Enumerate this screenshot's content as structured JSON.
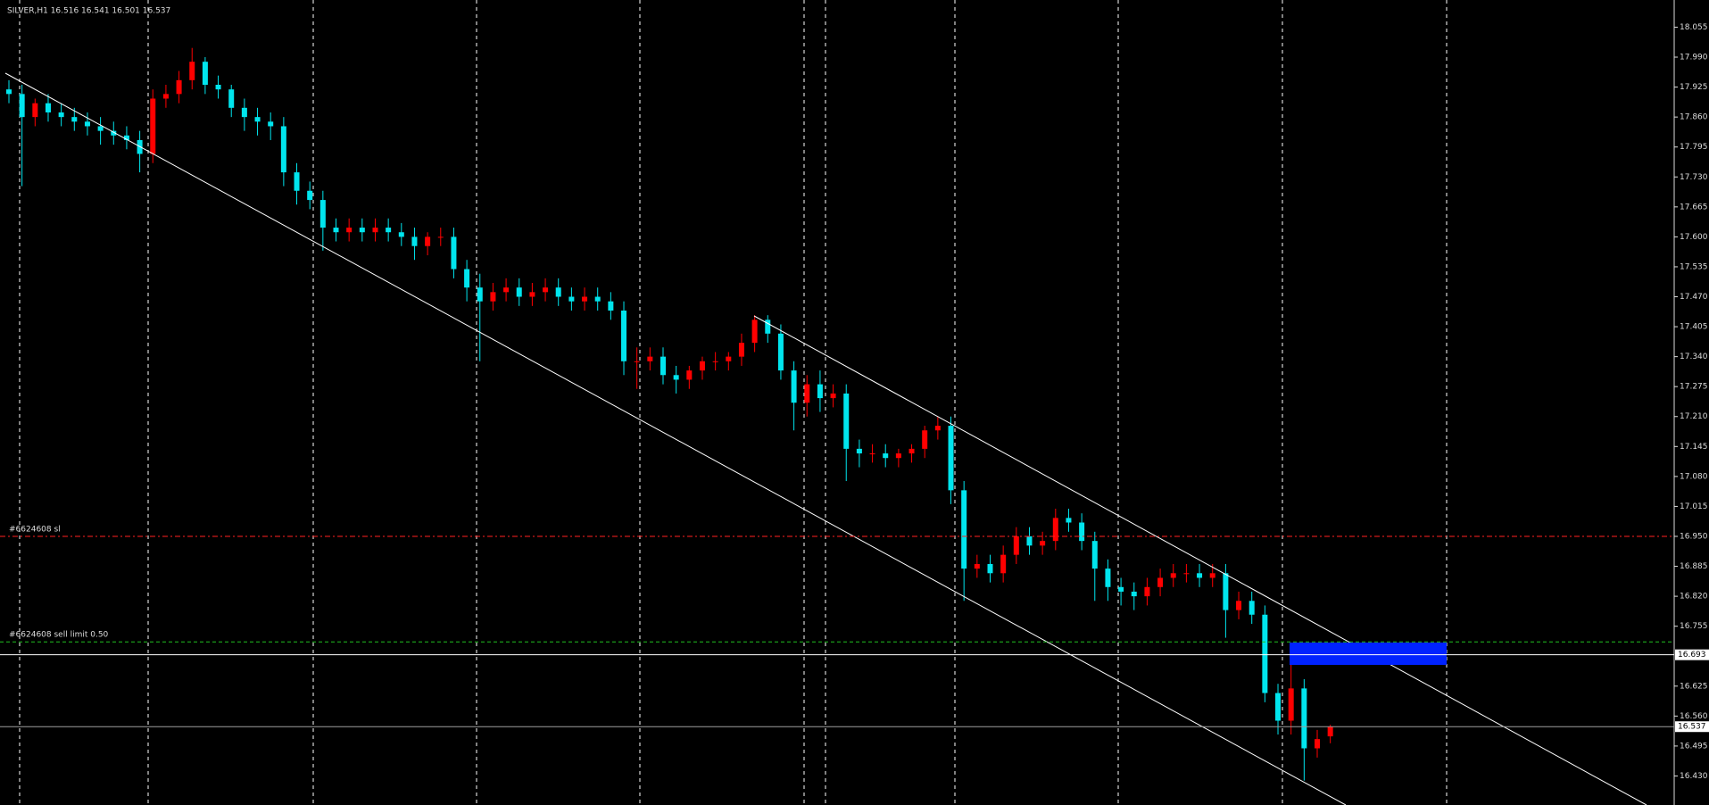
{
  "chart_data": {
    "type": "candlestick",
    "title": "SILVER,H1  16.516 16.541 16.501 16.537",
    "ylim": [
      16.367,
      18.114
    ],
    "yticks": [
      18.055,
      {
        "value": 17.99,
        "label": "17.990"
      },
      17.925,
      {
        "value": 17.86,
        "label": "17.860"
      },
      17.795,
      {
        "value": 17.73,
        "label": "17.730"
      },
      17.665,
      {
        "value": 17.6,
        "label": "17.600"
      },
      17.535,
      {
        "value": 17.47,
        "label": "17.470"
      },
      17.405,
      {
        "value": 17.34,
        "label": "17.340"
      },
      17.275,
      {
        "value": 17.21,
        "label": "17.210"
      },
      17.145,
      {
        "value": 17.08,
        "label": "17.080"
      },
      17.015,
      {
        "value": 16.95,
        "label": "16.950"
      },
      16.885,
      {
        "value": 16.82,
        "label": "16.820"
      },
      16.755,
      16.625,
      {
        "value": 16.56,
        "label": "16.560"
      },
      16.495,
      {
        "value": 16.43,
        "label": "16.430"
      }
    ],
    "up_color": "#ff0000",
    "down_color": "#00e5ee",
    "open": [
      17.92,
      17.91,
      17.86,
      17.89,
      17.87,
      17.86,
      17.85,
      17.84,
      17.83,
      17.82,
      17.81,
      17.78,
      17.9,
      17.91,
      17.94,
      17.98,
      17.93,
      17.92,
      17.88,
      17.86,
      17.85,
      17.84,
      17.74,
      17.7,
      17.68,
      17.62,
      17.61,
      17.62,
      17.61,
      17.62,
      17.61,
      17.6,
      17.58,
      17.6,
      17.6,
      17.53,
      17.49,
      17.46,
      17.48,
      17.49,
      17.47,
      17.48,
      17.49,
      17.47,
      17.46,
      17.47,
      17.46,
      17.44,
      17.33,
      17.33,
      17.34,
      17.3,
      17.29,
      17.31,
      17.33,
      17.33,
      17.34,
      17.37,
      17.42,
      17.39,
      17.31,
      17.24,
      17.28,
      17.25,
      17.26,
      17.14,
      17.13,
      17.13,
      17.12,
      17.13,
      17.14,
      17.18,
      17.19,
      17.05,
      16.88,
      16.89,
      16.87,
      16.91,
      16.95,
      16.93,
      16.94,
      16.99,
      16.98,
      16.94,
      16.88,
      16.84,
      16.83,
      16.82,
      16.84,
      16.86,
      16.87,
      16.87,
      16.86,
      16.87,
      16.79,
      16.81,
      16.78,
      16.61,
      16.55,
      16.62,
      16.49,
      16.516
    ],
    "high": [
      17.94,
      17.93,
      17.9,
      17.91,
      17.89,
      17.88,
      17.87,
      17.86,
      17.85,
      17.84,
      17.83,
      17.92,
      17.93,
      17.96,
      18.01,
      17.99,
      17.95,
      17.93,
      17.9,
      17.88,
      17.87,
      17.86,
      17.76,
      17.72,
      17.7,
      17.64,
      17.64,
      17.64,
      17.64,
      17.64,
      17.63,
      17.62,
      17.61,
      17.62,
      17.62,
      17.55,
      17.52,
      17.5,
      17.51,
      17.51,
      17.5,
      17.51,
      17.51,
      17.49,
      17.49,
      17.49,
      17.48,
      17.46,
      17.36,
      17.36,
      17.36,
      17.32,
      17.32,
      17.34,
      17.35,
      17.35,
      17.39,
      17.43,
      17.43,
      17.41,
      17.33,
      17.3,
      17.31,
      17.28,
      17.28,
      17.16,
      17.15,
      17.15,
      17.14,
      17.15,
      17.19,
      17.21,
      17.21,
      17.07,
      16.91,
      16.91,
      16.93,
      16.97,
      16.97,
      16.96,
      17.01,
      17.01,
      17.0,
      16.96,
      16.9,
      16.86,
      16.85,
      16.86,
      16.88,
      16.89,
      16.89,
      16.89,
      16.89,
      16.89,
      16.83,
      16.83,
      16.8,
      16.63,
      16.69,
      16.64,
      16.53,
      16.541
    ],
    "low": [
      17.89,
      17.71,
      17.84,
      17.85,
      17.84,
      17.83,
      17.82,
      17.8,
      17.8,
      17.79,
      17.74,
      17.76,
      17.88,
      17.89,
      17.92,
      17.91,
      17.9,
      17.86,
      17.83,
      17.82,
      17.81,
      17.71,
      17.67,
      17.66,
      17.57,
      17.59,
      17.59,
      17.59,
      17.59,
      17.59,
      17.58,
      17.55,
      17.56,
      17.58,
      17.51,
      17.46,
      17.33,
      17.44,
      17.46,
      17.45,
      17.45,
      17.46,
      17.45,
      17.44,
      17.44,
      17.44,
      17.42,
      17.3,
      17.27,
      17.31,
      17.28,
      17.26,
      17.27,
      17.29,
      17.31,
      17.31,
      17.32,
      17.35,
      17.37,
      17.29,
      17.18,
      17.21,
      17.22,
      17.23,
      17.07,
      17.1,
      17.11,
      17.1,
      17.1,
      17.11,
      17.12,
      17.16,
      17.02,
      16.81,
      16.86,
      16.85,
      16.85,
      16.89,
      16.91,
      16.91,
      16.92,
      16.96,
      16.92,
      16.81,
      16.81,
      16.8,
      16.79,
      16.8,
      16.82,
      16.84,
      16.85,
      16.84,
      16.84,
      16.73,
      16.77,
      16.76,
      16.59,
      16.52,
      16.52,
      16.42,
      16.47,
      16.501
    ],
    "close": [
      17.91,
      17.86,
      17.89,
      17.87,
      17.86,
      17.85,
      17.84,
      17.83,
      17.82,
      17.81,
      17.78,
      17.9,
      17.91,
      17.94,
      17.98,
      17.93,
      17.92,
      17.88,
      17.86,
      17.85,
      17.84,
      17.74,
      17.7,
      17.68,
      17.62,
      17.61,
      17.62,
      17.61,
      17.62,
      17.61,
      17.6,
      17.58,
      17.6,
      17.6,
      17.53,
      17.49,
      17.46,
      17.48,
      17.49,
      17.47,
      17.48,
      17.49,
      17.47,
      17.46,
      17.47,
      17.46,
      17.44,
      17.33,
      17.33,
      17.34,
      17.3,
      17.29,
      17.31,
      17.33,
      17.33,
      17.34,
      17.37,
      17.42,
      17.39,
      17.31,
      17.24,
      17.28,
      17.25,
      17.26,
      17.14,
      17.13,
      17.13,
      17.12,
      17.13,
      17.14,
      17.18,
      17.19,
      17.05,
      16.88,
      16.89,
      16.87,
      16.91,
      16.95,
      16.93,
      16.94,
      16.99,
      16.98,
      16.94,
      16.88,
      16.84,
      16.83,
      16.82,
      16.84,
      16.86,
      16.87,
      16.87,
      16.86,
      16.87,
      16.79,
      16.81,
      16.78,
      16.61,
      16.55,
      16.62,
      16.49,
      16.51,
      16.537
    ],
    "orders": [
      {
        "label": "#6624608 sl",
        "price": 16.95,
        "color": "#ff2020"
      },
      {
        "label": "#6624608 sell limit 0.50",
        "price": 16.721,
        "color": "#20c020"
      }
    ],
    "price_lines": [
      {
        "price": 16.693,
        "color": "#ffffff"
      },
      {
        "price": 16.537,
        "color": "#a0a0a0"
      }
    ]
  }
}
